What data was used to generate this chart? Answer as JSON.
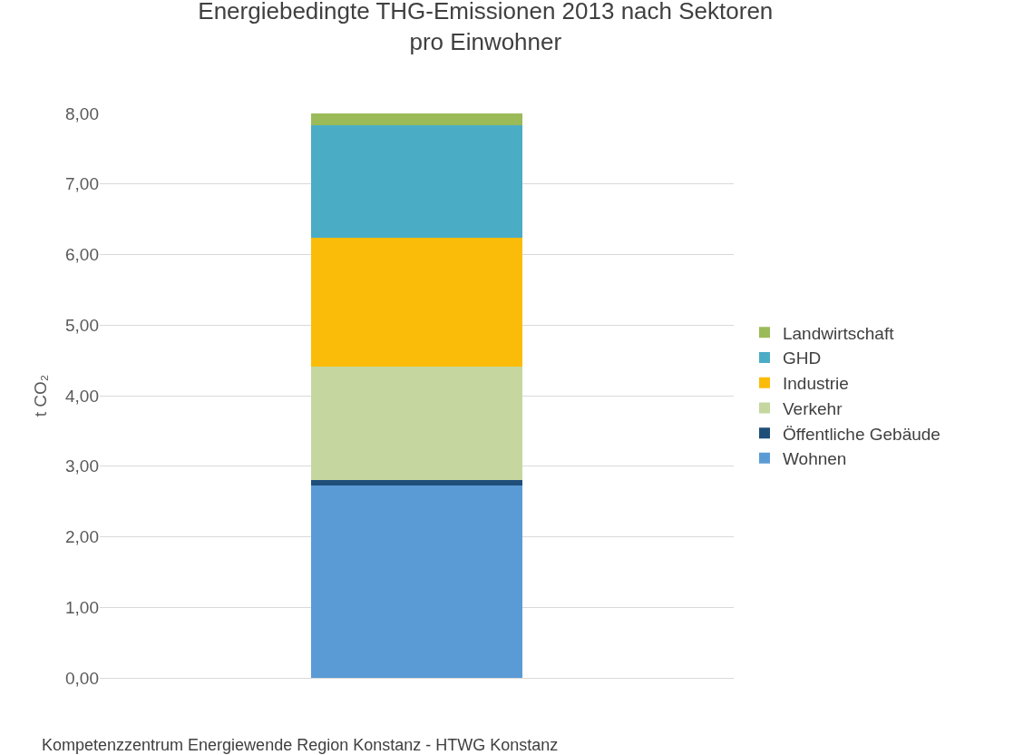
{
  "chart_data": {
    "type": "bar",
    "stacked": true,
    "title": "Energiebedingte THG-Emissionen 2013 nach Sektoren\npro Einwohner",
    "ylabel": "t CO₂",
    "categories": [
      null
    ],
    "series": [
      {
        "name": "Wohnen",
        "color": "#5b9bd5",
        "values": [
          2.73
        ]
      },
      {
        "name": "Öffentliche Gebäude",
        "color": "#1f4e79",
        "values": [
          0.07
        ]
      },
      {
        "name": "Verkehr",
        "color": "#c5d79f",
        "values": [
          1.61
        ]
      },
      {
        "name": "Industrie",
        "color": "#fbbc09",
        "values": [
          1.83
        ]
      },
      {
        "name": "GHD",
        "color": "#4bacc6",
        "values": [
          1.59
        ]
      },
      {
        "name": "Landwirtschaft",
        "color": "#9bbb59",
        "values": [
          0.17
        ]
      }
    ],
    "ylim": [
      0,
      8
    ],
    "yticks": [
      {
        "value": 0,
        "label": "0,00"
      },
      {
        "value": 1,
        "label": "1,00"
      },
      {
        "value": 2,
        "label": "2,00"
      },
      {
        "value": 3,
        "label": "3,00"
      },
      {
        "value": 4,
        "label": "4,00"
      },
      {
        "value": 5,
        "label": "5,00"
      },
      {
        "value": 6,
        "label": "6,00"
      },
      {
        "value": 7,
        "label": "7,00"
      },
      {
        "value": 8,
        "label": "8,00"
      }
    ],
    "grid": "y",
    "legend": "right",
    "annotations": [
      "Kompetenzzentrum Energiewende Region Konstanz - HTWG Konstanz"
    ]
  }
}
